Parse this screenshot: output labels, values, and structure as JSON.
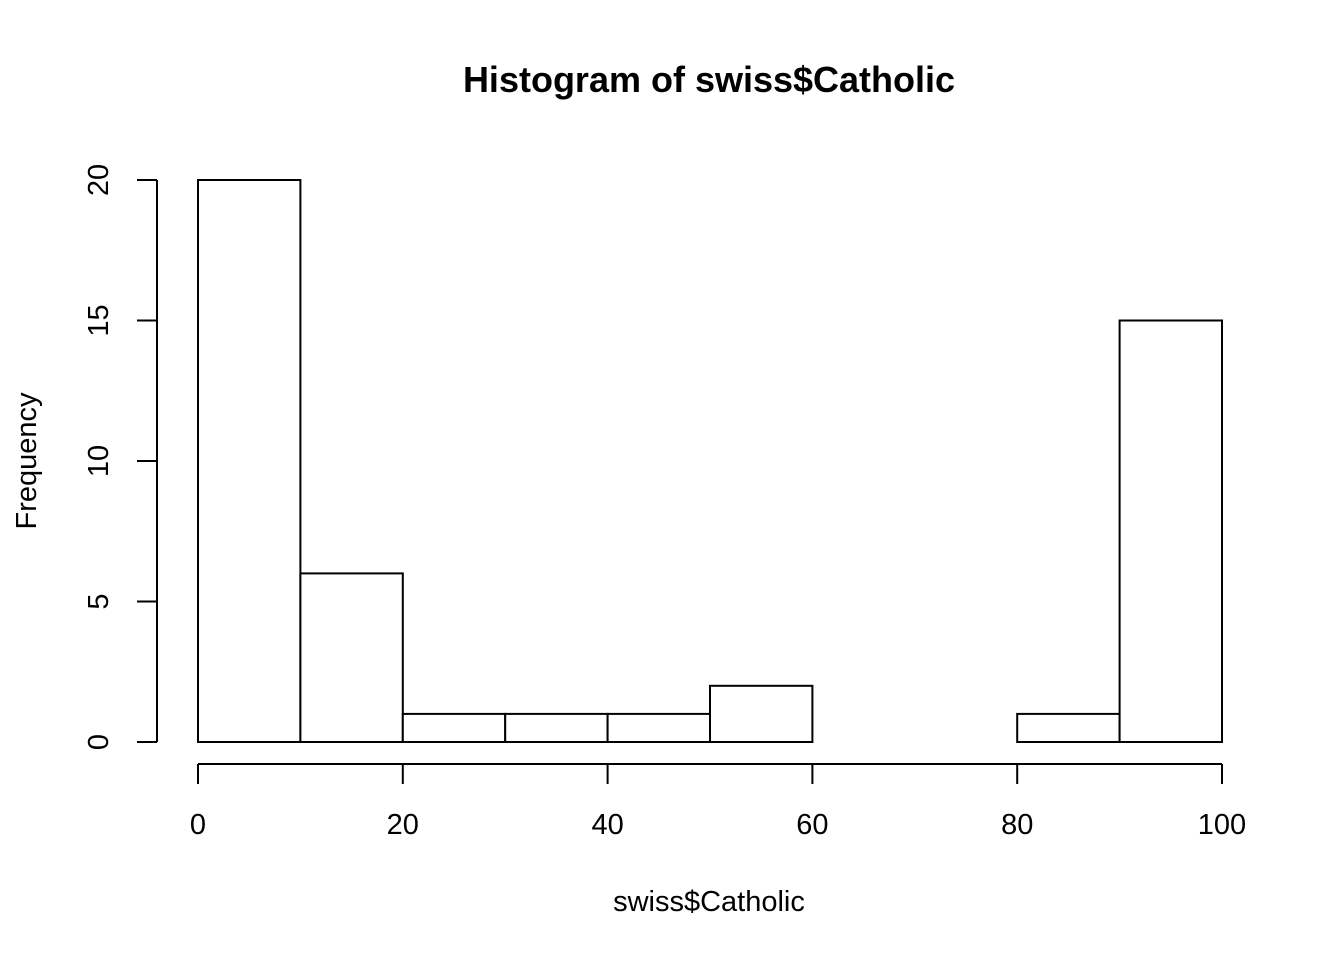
{
  "chart_data": {
    "type": "bar",
    "subtype": "histogram",
    "title": "Histogram of swiss$Catholic",
    "xlabel": "swiss$Catholic",
    "ylabel": "Frequency",
    "bins": [
      {
        "from": 0,
        "to": 10,
        "count": 20
      },
      {
        "from": 10,
        "to": 20,
        "count": 6
      },
      {
        "from": 20,
        "to": 30,
        "count": 1
      },
      {
        "from": 30,
        "to": 40,
        "count": 1
      },
      {
        "from": 40,
        "to": 50,
        "count": 1
      },
      {
        "from": 50,
        "to": 60,
        "count": 2
      },
      {
        "from": 60,
        "to": 70,
        "count": 0
      },
      {
        "from": 70,
        "to": 80,
        "count": 0
      },
      {
        "from": 80,
        "to": 90,
        "count": 1
      },
      {
        "from": 90,
        "to": 100,
        "count": 15
      }
    ],
    "xlim": [
      0,
      100
    ],
    "ylim": [
      0,
      20
    ],
    "x_ticks": [
      "0",
      "20",
      "40",
      "60",
      "80",
      "100"
    ],
    "y_ticks": [
      "0",
      "5",
      "10",
      "15",
      "20"
    ],
    "grid": false,
    "legend": "none",
    "bar_fill": "#ffffff",
    "bar_stroke": "#000000"
  }
}
